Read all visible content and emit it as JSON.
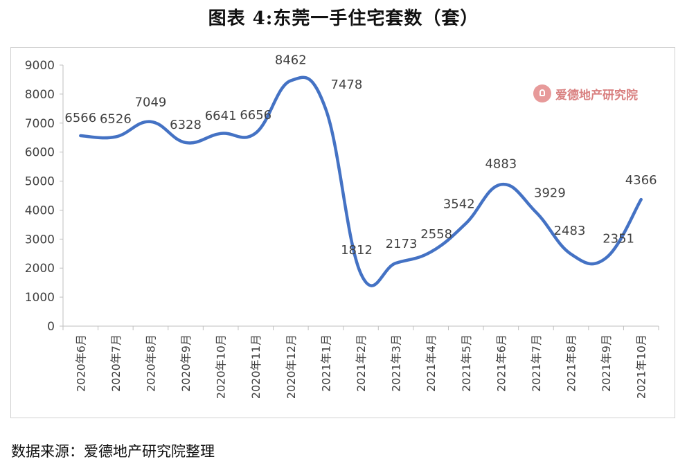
{
  "title": "图表 4:东莞一手住宅套数（套）",
  "source": "数据来源：爱德地产研究院整理",
  "watermark": {
    "text": "爱德地产研究院",
    "icon": "house-logo-icon"
  },
  "colors": {
    "line": "#4472c4",
    "axis": "#7f7f7f",
    "label": "#404040",
    "watermark": "#d98080"
  },
  "chart_data": {
    "type": "line",
    "categories": [
      "2020年6月",
      "2020年7月",
      "2020年8月",
      "2020年9月",
      "2020年10月",
      "2020年11月",
      "2020年12月",
      "2021年1月",
      "2021年2月",
      "2021年3月",
      "2021年4月",
      "2021年5月",
      "2021年6月",
      "2021年7月",
      "2021年8月",
      "2021年9月",
      "2021年10月"
    ],
    "values": [
      6566,
      6526,
      7049,
      6328,
      6641,
      6656,
      8462,
      7478,
      1812,
      2173,
      2558,
      3542,
      4883,
      3929,
      2483,
      2351,
      4366
    ],
    "data_labels": [
      "6566",
      "6526",
      "7049",
      "6328",
      "6641",
      "6656",
      "8462",
      "7478",
      "1812",
      "2173",
      "2558",
      "3542",
      "4883",
      "3929",
      "2483",
      "2351",
      "4366"
    ],
    "yticks": [
      "0",
      "1000",
      "2000",
      "3000",
      "4000",
      "5000",
      "6000",
      "7000",
      "8000",
      "9000"
    ],
    "ylim": [
      0,
      9000
    ],
    "smooth": true,
    "grid": false,
    "legend": "none"
  }
}
